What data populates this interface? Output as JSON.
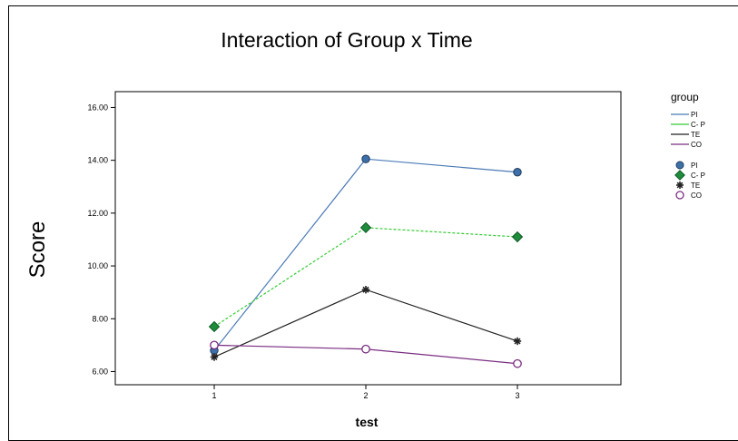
{
  "chart_data": {
    "type": "line",
    "title": "Interaction of Group x Time",
    "xlabel": "test",
    "ylabel": "Score",
    "categories": [
      "1",
      "2",
      "3"
    ],
    "ylim": [
      5.5,
      16.6
    ],
    "yticks": [
      "6.00",
      "8.00",
      "10.00",
      "12.00",
      "14.00",
      "16.00"
    ],
    "ytick_values": [
      6,
      8,
      10,
      12,
      14,
      16
    ],
    "legend": {
      "title": "group",
      "position": "right",
      "line_labels": [
        "PI",
        "C- P",
        "TE",
        "CO"
      ],
      "marker_labels": [
        "PI",
        "C- P",
        "TE",
        "CO"
      ]
    },
    "series": [
      {
        "name": "PI",
        "values": [
          6.8,
          14.05,
          13.55
        ],
        "color": "#4a7ab5",
        "marker": "circle",
        "marker_fill": "#3d6fa8",
        "dash": "none"
      },
      {
        "name": "C- P",
        "values": [
          7.7,
          11.45,
          11.1
        ],
        "color": "#33cc33",
        "marker": "diamond",
        "marker_fill": "#1e8c3a",
        "dash": "3,2"
      },
      {
        "name": "TE",
        "values": [
          6.55,
          9.1,
          7.15
        ],
        "color": "#222222",
        "marker": "star",
        "marker_fill": "#222222",
        "dash": "none"
      },
      {
        "name": "CO",
        "values": [
          7.0,
          6.85,
          6.3
        ],
        "color": "#7a2d82",
        "marker": "ring",
        "marker_fill": "#ffffff",
        "dash": "none"
      }
    ]
  }
}
